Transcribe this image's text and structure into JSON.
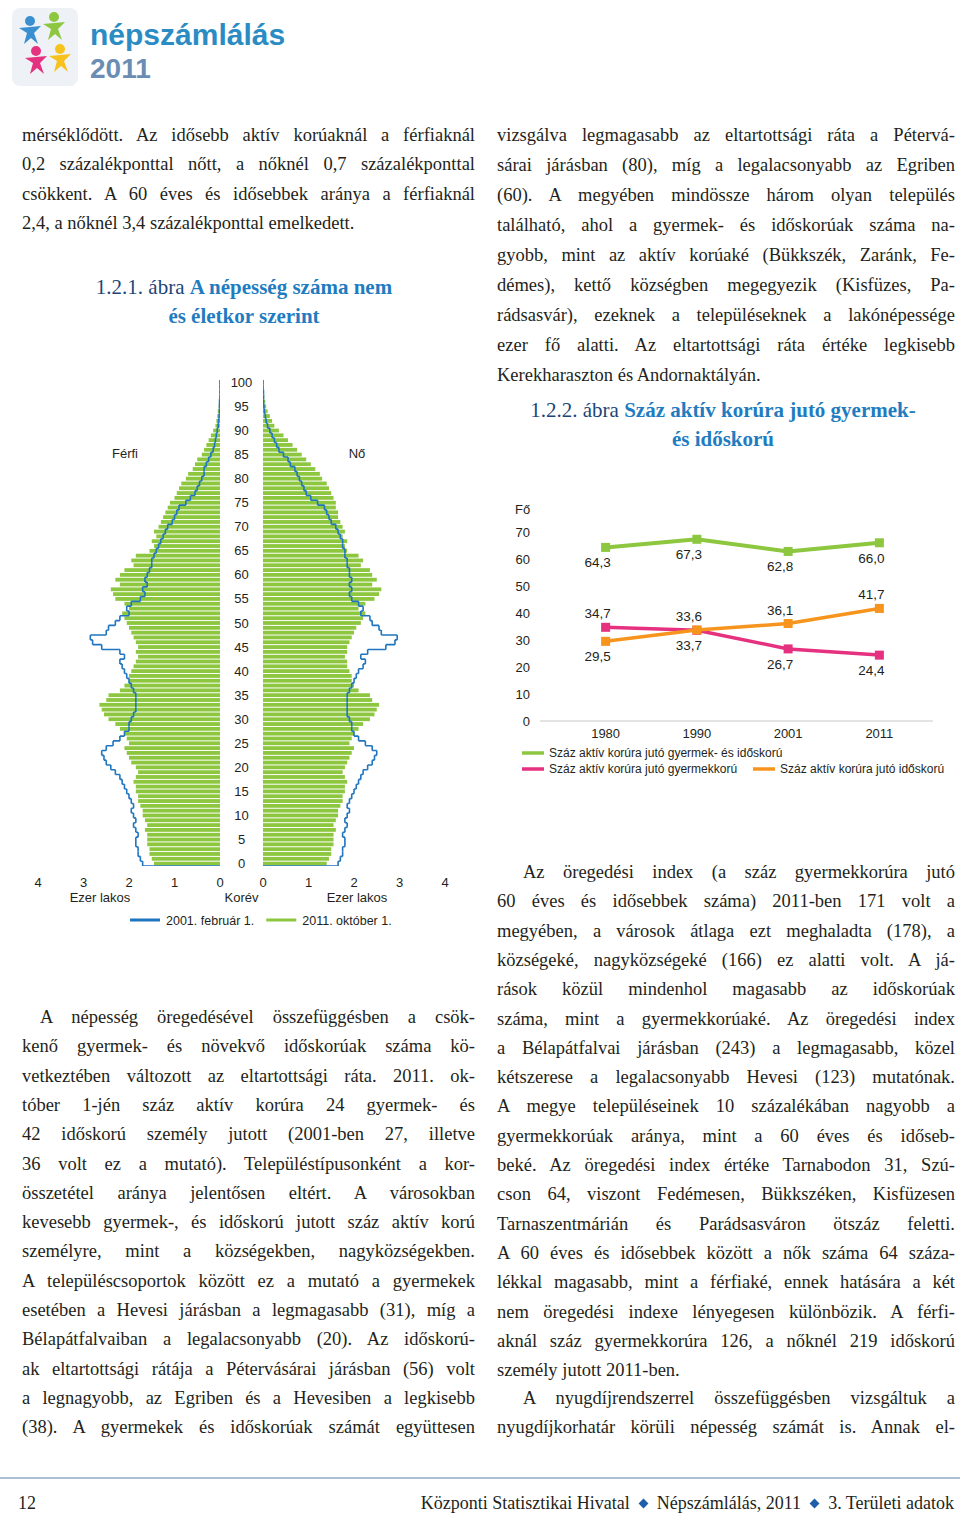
{
  "header": {
    "brand": "népszámlálás",
    "year": "2011"
  },
  "text_blocks": {
    "left_top": [
      "mérséklődött. Az idősebb aktív korúaknál a férfiaknál",
      "0,2 százalékponttal nőtt, a nőknél 0,7 százalékponttal",
      "csökkent. A 60 éves és idősebbek aránya a férfiaknál",
      "2,4, a nőknél 3,4 százalékponttal emelkedett."
    ],
    "left_bottom": [
      "A népesség öregedésével összefüggésben a csök-",
      "kenő gyermek- és növekvő időskorúak száma kö-",
      "vetkeztében változott az eltartottsági ráta. 2011. ok-",
      "tóber 1-jén száz aktív korúra 24 gyermek- és",
      "42 időskorú személy jutott (2001-ben 27, illetve",
      "36 volt ez a mutató). Településtípusonként a kor-",
      "összetétel aránya jelentősen eltért. A városokban",
      "kevesebb gyermek-, és időskorú jutott száz aktív korú",
      "személyre, mint a községekben, nagyközségekben.",
      "A településcsoportok között ez a mutató a gyermekek",
      "esetében a Hevesi járásban a legmagasabb (31), míg a",
      "Bélapátfalvaiban a legalacsonyabb (20). Az időskorú-",
      "ak eltartottsági rátája a Pétervásárai járásban (56) volt",
      "a legnagyobb, az Egriben és a Hevesiben a legkisebb",
      "(38). A gyermekek és időskorúak számát együttesen"
    ],
    "right_top": [
      "vizsgálva legmagasabb az eltartottsági ráta a Pétervá-",
      "sárai járásban (80), míg a legalacsonyabb az Egriben",
      "(60). A megyében mindössze három olyan település",
      "található, ahol a gyermek- és időskorúak száma na-",
      "gyobb, mint az aktív korúaké (Bükkszék, Zaránk, Fe-",
      "démes), kettő községben megegyezik (Kisfüzes, Pa-",
      "rádsasvár), ezeknek a településeknek a lakónépessége",
      "ezer fő alatti. Az eltartottsági ráta értéke legkisebb",
      "Kerekharaszton és Andornaktályán."
    ],
    "right_bottom_1": [
      "Az öregedési index (a száz gyermekkorúra jutó",
      "60 éves és idősebbek száma) 2011-ben 171 volt a",
      "megyében, a városok átlaga ezt meghaladta (178), a",
      "községeké, nagyközségeké (166) ez alatti volt. A já-",
      "rások közül mindenhol magasabb az időskorúak",
      "száma, mint a gyermekkorúaké. Az öregedési index",
      "a Bélapátfalvai járásban (243) a legmagasabb, közel",
      "kétszerese a legalacsonyabb Hevesi (123) mutatónak.",
      "A megye településeinek 10 százalékában nagyobb a",
      "gyermekkorúak aránya, mint a 60 éves és időseb-",
      "beké. Az öregedési index értéke Tarnabodon 31, Szú-",
      "cson 64, viszont Fedémesen, Bükkszéken, Kisfüzesen",
      "Tarnaszentmárián és Parádsasváron ötszáz feletti.",
      "A 60 éves és idősebbek között a nők száma 64 száza-",
      "lékkal magasabb, mint a férfiaké, ennek hatására a két",
      "nem öregedési indexe lényegesen különbözik. A férfi-",
      "aknál száz gyermekkorúra 126, a nőknél 219 időskorú",
      "személy jutott 2011-ben."
    ],
    "right_bottom_2": [
      "A nyugdíjrendszerrel összefüggésben vizsgáltuk a",
      "nyugdíjkorhatár körüli népesség számát is. Annak el-"
    ]
  },
  "chart_data": [
    {
      "type": "pyramid",
      "orientation": "horizontal",
      "label": "1.2.1. ábra",
      "title": [
        "A népesség száma nem",
        "és életkor szerint"
      ],
      "groups": [
        "Férfi",
        "Nő"
      ],
      "x_label": "Korév",
      "y_label": "Ezer lakos",
      "x": [
        0,
        1,
        2,
        3,
        4,
        5,
        6,
        7,
        8,
        9,
        10,
        11,
        12,
        13,
        14,
        15,
        16,
        17,
        18,
        19,
        20,
        21,
        22,
        23,
        24,
        25,
        26,
        27,
        28,
        29,
        30,
        31,
        32,
        33,
        34,
        35,
        36,
        37,
        38,
        39,
        40,
        41,
        42,
        43,
        44,
        45,
        46,
        47,
        48,
        49,
        50,
        51,
        52,
        53,
        54,
        55,
        56,
        57,
        58,
        59,
        60,
        61,
        62,
        63,
        64,
        65,
        66,
        67,
        68,
        69,
        70,
        71,
        72,
        73,
        74,
        75,
        76,
        77,
        78,
        79,
        80,
        81,
        82,
        83,
        84,
        85,
        86,
        87,
        88,
        89,
        90,
        91,
        92,
        93,
        94,
        95,
        96,
        97,
        98,
        99,
        100
      ],
      "xlim": [
        -0.5,
        100.5
      ],
      "xticks": [
        0,
        5,
        10,
        15,
        20,
        25,
        30,
        35,
        40,
        45,
        50,
        55,
        60,
        65,
        70,
        75,
        80,
        85,
        90,
        95,
        100
      ],
      "ylim": [
        0,
        4
      ],
      "yticks": [
        0,
        1,
        2,
        3,
        4
      ],
      "grid": false,
      "legend": "bottom",
      "series": [
        {
          "name": "2001. február 1.",
          "type": "line",
          "line_style": "step",
          "color": "#1f75bf",
          "values": [
            [
              1.7,
              1.75,
              1.8,
              1.8,
              1.85,
              1.85,
              1.8,
              1.85,
              1.9,
              1.85,
              1.9,
              1.95,
              1.9,
              1.95,
              2.0,
              2.05,
              2.1,
              2.15,
              2.2,
              2.3,
              2.4,
              2.5,
              2.55,
              2.6,
              2.5,
              2.35,
              2.2,
              2.1,
              2.0,
              2.0,
              1.95,
              1.9,
              1.85,
              1.85,
              1.85,
              1.85,
              1.9,
              1.95,
              2.0,
              2.05,
              2.1,
              2.15,
              2.2,
              2.1,
              2.2,
              2.6,
              2.8,
              2.85,
              2.5,
              2.45,
              2.3,
              2.2,
              2.0,
              2.05,
              1.95,
              1.75,
              1.65,
              1.7,
              1.6,
              1.65,
              1.6,
              1.55,
              1.5,
              1.5,
              1.45,
              1.4,
              1.35,
              1.3,
              1.25,
              1.2,
              1.15,
              1.05,
              1.0,
              0.95,
              0.9,
              0.75,
              0.65,
              0.55,
              0.5,
              0.45,
              0.4,
              0.35,
              0.35,
              0.3,
              0.25,
              0.2,
              0.15,
              0.12,
              0.1,
              0.08,
              0.06,
              0.04,
              0.03,
              0.02,
              0.01,
              0.01,
              0.01,
              0,
              0,
              0,
              0
            ],
            [
              1.65,
              1.7,
              1.75,
              1.75,
              1.8,
              1.8,
              1.75,
              1.8,
              1.85,
              1.8,
              1.85,
              1.9,
              1.85,
              1.9,
              1.95,
              2.0,
              2.05,
              2.1,
              2.15,
              2.2,
              2.3,
              2.4,
              2.45,
              2.5,
              2.4,
              2.25,
              2.1,
              2.0,
              1.95,
              1.95,
              1.9,
              1.85,
              1.85,
              1.85,
              1.85,
              1.85,
              1.9,
              1.95,
              2.0,
              2.05,
              2.1,
              2.2,
              2.25,
              2.15,
              2.3,
              2.7,
              2.9,
              2.95,
              2.6,
              2.55,
              2.4,
              2.35,
              2.15,
              2.2,
              2.1,
              1.95,
              1.9,
              1.95,
              1.9,
              1.95,
              1.9,
              1.9,
              1.85,
              1.85,
              1.8,
              1.8,
              1.75,
              1.75,
              1.7,
              1.65,
              1.6,
              1.5,
              1.45,
              1.4,
              1.35,
              1.2,
              1.05,
              0.95,
              0.9,
              0.85,
              0.8,
              0.75,
              0.7,
              0.6,
              0.55,
              0.45,
              0.35,
              0.3,
              0.25,
              0.2,
              0.15,
              0.1,
              0.07,
              0.05,
              0.03,
              0.02,
              0.01,
              0.01,
              0.01,
              0,
              0
            ]
          ]
        },
        {
          "name": "2011. október 1.",
          "type": "bar",
          "color": "#8dc63f",
          "values": [
            [
              1.45,
              1.5,
              1.55,
              1.55,
              1.6,
              1.6,
              1.6,
              1.65,
              1.6,
              1.65,
              1.7,
              1.7,
              1.75,
              1.8,
              1.8,
              1.85,
              1.85,
              1.9,
              1.85,
              1.8,
              1.85,
              1.95,
              2.0,
              2.05,
              2.1,
              2.0,
              2.05,
              2.1,
              2.2,
              2.3,
              2.45,
              2.55,
              2.6,
              2.65,
              2.5,
              2.45,
              2.2,
              2.1,
              2.0,
              2.0,
              1.95,
              1.9,
              1.85,
              1.8,
              1.85,
              1.8,
              1.85,
              1.9,
              1.95,
              2.0,
              2.05,
              2.1,
              2.15,
              2.0,
              2.1,
              2.3,
              2.35,
              2.4,
              2.2,
              2.3,
              2.2,
              2.1,
              1.9,
              1.95,
              1.85,
              1.55,
              1.45,
              1.5,
              1.4,
              1.45,
              1.35,
              1.3,
              1.25,
              1.2,
              1.15,
              1.1,
              1.0,
              0.95,
              0.9,
              0.85,
              0.75,
              0.7,
              0.6,
              0.55,
              0.5,
              0.4,
              0.35,
              0.3,
              0.25,
              0.2,
              0.15,
              0.1,
              0.08,
              0.06,
              0.05,
              0.03,
              0.02,
              0.02,
              0.01,
              0.01,
              0.01
            ],
            [
              1.4,
              1.45,
              1.5,
              1.5,
              1.55,
              1.55,
              1.55,
              1.6,
              1.55,
              1.6,
              1.65,
              1.65,
              1.7,
              1.75,
              1.75,
              1.8,
              1.8,
              1.85,
              1.8,
              1.75,
              1.8,
              1.85,
              1.9,
              1.95,
              2.0,
              1.9,
              1.95,
              2.0,
              2.1,
              2.2,
              2.35,
              2.45,
              2.5,
              2.55,
              2.4,
              2.35,
              2.1,
              2.0,
              1.95,
              1.95,
              1.9,
              1.85,
              1.85,
              1.8,
              1.85,
              1.85,
              1.9,
              1.95,
              2.0,
              2.05,
              2.15,
              2.2,
              2.25,
              2.1,
              2.25,
              2.45,
              2.55,
              2.6,
              2.4,
              2.5,
              2.4,
              2.35,
              2.15,
              2.2,
              2.1,
              1.85,
              1.8,
              1.85,
              1.75,
              1.8,
              1.75,
              1.7,
              1.65,
              1.65,
              1.6,
              1.6,
              1.55,
              1.5,
              1.45,
              1.4,
              1.3,
              1.25,
              1.15,
              1.05,
              0.95,
              0.85,
              0.75,
              0.65,
              0.55,
              0.45,
              0.35,
              0.25,
              0.2,
              0.15,
              0.1,
              0.07,
              0.05,
              0.03,
              0.02,
              0.01,
              0.01
            ]
          ]
        }
      ]
    },
    {
      "type": "line",
      "label": "1.2.2. ábra",
      "title": [
        "Száz aktív korúra jutó gyermek-",
        "és időskorú"
      ],
      "y_label": "Fő",
      "categories": [
        "1980",
        "1990",
        "2001",
        "2011"
      ],
      "ylim": [
        0,
        70
      ],
      "yticks": [
        0,
        10,
        20,
        30,
        40,
        50,
        60,
        70
      ],
      "grid": false,
      "legend": "bottom",
      "data_labels": true,
      "marker": "square",
      "series": [
        {
          "name": "Száz aktív korúra jutó gyermek- és időskorú",
          "color": "#8dc63f",
          "values": [
            64.3,
            67.3,
            62.8,
            66.0
          ],
          "value_labels": [
            "64,3",
            "67,3",
            "62,8",
            "66,0"
          ]
        },
        {
          "name": "Száz aktív korúra jutó gyermekkorú",
          "color": "#e5317f",
          "values": [
            34.7,
            33.6,
            26.7,
            24.4
          ],
          "value_labels": [
            "34,7",
            "33,6",
            "26,7",
            "24,4"
          ]
        },
        {
          "name": "Száz aktív korúra jutó időskorú",
          "color": "#f7941d",
          "values": [
            29.5,
            33.7,
            36.1,
            41.7
          ],
          "value_labels": [
            "29,5",
            "33,7",
            "36,1",
            "41,7"
          ]
        }
      ]
    }
  ],
  "footer": {
    "page": "12",
    "items": [
      "Központi Statisztikai Hivatal",
      "Népszámlálás, 2011",
      "3. Területi adatok"
    ]
  }
}
